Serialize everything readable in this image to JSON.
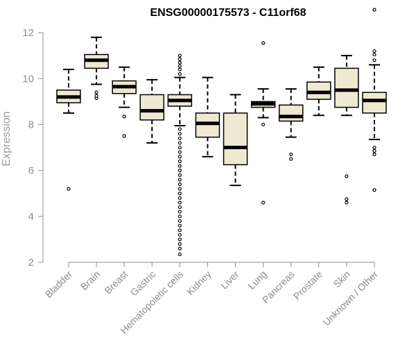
{
  "chart_data": {
    "type": "box",
    "title": "ENSG00000175573 - C11orf68",
    "xlabel": "",
    "ylabel": "Expression",
    "ylim": [
      2,
      13
    ],
    "yticks": [
      2,
      4,
      6,
      8,
      10,
      12
    ],
    "grid": false,
    "legend": "none",
    "colors": {
      "box_fill": "#efe9d2",
      "box_stroke": "#000000",
      "median": "#000000",
      "axis": "#8c8c8c"
    },
    "categories": [
      "Bladder",
      "Brain",
      "Breast",
      "Gastric",
      "Hematopoietic cells",
      "Kidney",
      "Liver",
      "Lung",
      "Pancreas",
      "Prostate",
      "Skin",
      "Unknown / Other"
    ],
    "boxes": [
      {
        "name": "Bladder",
        "whisker_low": 8.5,
        "q1": 8.95,
        "median": 9.2,
        "q3": 9.5,
        "whisker_high": 10.4,
        "outliers": [
          5.2
        ]
      },
      {
        "name": "Brain",
        "whisker_low": 9.75,
        "q1": 10.45,
        "median": 10.8,
        "q3": 11.05,
        "whisker_high": 11.8,
        "outliers": [
          9.15,
          9.25,
          9.4
        ]
      },
      {
        "name": "Breast",
        "whisker_low": 8.75,
        "q1": 9.35,
        "median": 9.65,
        "q3": 9.9,
        "whisker_high": 10.5,
        "outliers": [
          7.5,
          8.35
        ]
      },
      {
        "name": "Gastric",
        "whisker_low": 7.2,
        "q1": 8.2,
        "median": 8.6,
        "q3": 9.3,
        "whisker_high": 9.95,
        "outliers": []
      },
      {
        "name": "Hematopoietic cells",
        "whisker_low": 7.95,
        "q1": 8.8,
        "median": 9.05,
        "q3": 9.3,
        "whisker_high": 10.05,
        "outliers": [
          10.2,
          10.4,
          10.55,
          10.7,
          10.85,
          11.0,
          7.8,
          7.6,
          7.4,
          7.2,
          7.0,
          6.8,
          6.6,
          6.4,
          6.2,
          6.0,
          5.8,
          5.6,
          5.4,
          5.2,
          5.0,
          4.8,
          4.6,
          4.4,
          4.2,
          4.0,
          3.8,
          3.6,
          3.4,
          3.2,
          3.0,
          2.8,
          2.6,
          2.35
        ]
      },
      {
        "name": "Kidney",
        "whisker_low": 6.6,
        "q1": 7.45,
        "median": 8.05,
        "q3": 8.5,
        "whisker_high": 10.05,
        "outliers": []
      },
      {
        "name": "Liver",
        "whisker_low": 5.35,
        "q1": 6.25,
        "median": 7.0,
        "q3": 8.5,
        "whisker_high": 9.3,
        "outliers": []
      },
      {
        "name": "Lung",
        "whisker_low": 8.3,
        "q1": 8.75,
        "median": 8.9,
        "q3": 9.0,
        "whisker_high": 9.55,
        "outliers": [
          11.55,
          8.0,
          4.6
        ]
      },
      {
        "name": "Pancreas",
        "whisker_low": 7.45,
        "q1": 8.15,
        "median": 8.35,
        "q3": 8.85,
        "whisker_high": 9.55,
        "outliers": [
          6.7,
          6.5
        ]
      },
      {
        "name": "Prostate",
        "whisker_low": 8.4,
        "q1": 9.1,
        "median": 9.4,
        "q3": 9.85,
        "whisker_high": 10.5,
        "outliers": []
      },
      {
        "name": "Skin",
        "whisker_low": 8.4,
        "q1": 8.75,
        "median": 9.5,
        "q3": 10.45,
        "whisker_high": 11.0,
        "outliers": [
          5.75,
          4.75,
          4.6
        ]
      },
      {
        "name": "Unknown / Other",
        "whisker_low": 7.35,
        "q1": 8.5,
        "median": 9.05,
        "q3": 9.4,
        "whisker_high": 10.6,
        "outliers": [
          13.0,
          11.2,
          11.05,
          10.8,
          7.0,
          6.85,
          6.7,
          5.15
        ]
      }
    ]
  }
}
